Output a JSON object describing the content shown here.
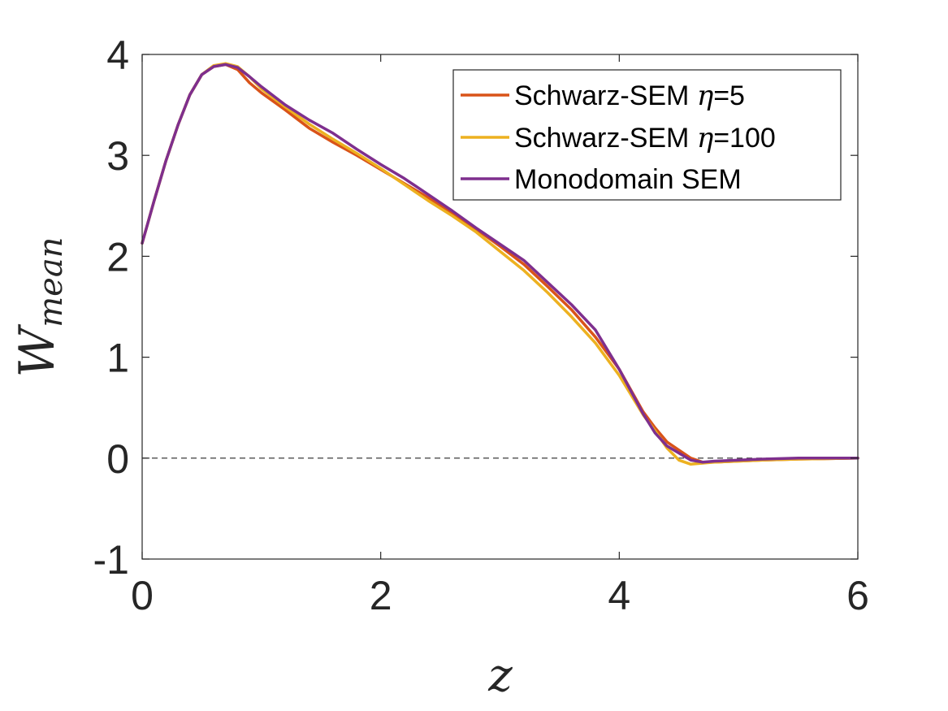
{
  "chart_data": {
    "type": "line",
    "xlabel": "z",
    "ylabel": "W",
    "ylabel_subscript": "mean",
    "xlim": [
      0,
      6
    ],
    "ylim": [
      -1,
      4
    ],
    "xticks": [
      0,
      2,
      4,
      6
    ],
    "xtick_labels": [
      "0",
      "2",
      "4",
      "6"
    ],
    "yticks": [
      -1,
      0,
      1,
      2,
      3,
      4
    ],
    "ytick_labels": [
      "-1",
      "0",
      "1",
      "2",
      "3",
      "4"
    ],
    "grid": false,
    "legend_position": "top-right",
    "reference_line": {
      "y": 0,
      "style": "dashed"
    },
    "series": [
      {
        "name": "Schwarz-SEM η=5",
        "legend_prefix": "Schwarz-SEM ",
        "legend_symbol": "η",
        "legend_suffix": "=5",
        "color": "#D95319",
        "x": [
          0,
          0.1,
          0.2,
          0.3,
          0.4,
          0.5,
          0.6,
          0.7,
          0.8,
          0.9,
          1.0,
          1.2,
          1.4,
          1.6,
          1.8,
          2.0,
          2.2,
          2.4,
          2.6,
          2.8,
          3.0,
          3.2,
          3.4,
          3.6,
          3.8,
          4.0,
          4.2,
          4.3,
          4.4,
          4.5,
          4.6,
          4.7,
          4.8,
          5.0,
          5.2,
          5.5,
          6.0
        ],
        "y": [
          2.13,
          2.55,
          2.95,
          3.3,
          3.6,
          3.8,
          3.88,
          3.9,
          3.85,
          3.72,
          3.62,
          3.45,
          3.27,
          3.13,
          3.0,
          2.86,
          2.72,
          2.58,
          2.43,
          2.27,
          2.1,
          1.92,
          1.7,
          1.47,
          1.2,
          0.88,
          0.46,
          0.3,
          0.16,
          0.08,
          0.0,
          -0.04,
          -0.04,
          -0.03,
          -0.02,
          -0.01,
          0.0
        ]
      },
      {
        "name": "Schwarz-SEM η=100",
        "legend_prefix": "Schwarz-SEM ",
        "legend_symbol": "η",
        "legend_suffix": "=100",
        "color": "#EDB120",
        "x": [
          0,
          0.1,
          0.2,
          0.3,
          0.4,
          0.5,
          0.6,
          0.7,
          0.8,
          0.9,
          1.0,
          1.2,
          1.4,
          1.6,
          1.8,
          2.0,
          2.2,
          2.4,
          2.6,
          2.8,
          3.0,
          3.2,
          3.4,
          3.6,
          3.8,
          4.0,
          4.2,
          4.3,
          4.4,
          4.5,
          4.6,
          4.7,
          4.8,
          5.0,
          5.2,
          5.5,
          6.0
        ],
        "y": [
          2.13,
          2.55,
          2.95,
          3.3,
          3.6,
          3.8,
          3.89,
          3.91,
          3.88,
          3.78,
          3.66,
          3.48,
          3.31,
          3.16,
          3.02,
          2.87,
          2.71,
          2.55,
          2.4,
          2.24,
          2.05,
          1.86,
          1.64,
          1.4,
          1.14,
          0.82,
          0.43,
          0.27,
          0.1,
          -0.02,
          -0.06,
          -0.05,
          -0.04,
          -0.03,
          -0.02,
          -0.01,
          0.0
        ]
      },
      {
        "name": "Monodomain SEM",
        "color": "#7E2F8E",
        "x": [
          0,
          0.1,
          0.2,
          0.3,
          0.4,
          0.5,
          0.6,
          0.7,
          0.8,
          0.9,
          1.0,
          1.2,
          1.4,
          1.6,
          1.8,
          2.0,
          2.2,
          2.4,
          2.6,
          2.8,
          3.0,
          3.2,
          3.4,
          3.6,
          3.8,
          4.0,
          4.2,
          4.3,
          4.4,
          4.5,
          4.6,
          4.7,
          4.8,
          5.0,
          5.2,
          5.5,
          6.0
        ],
        "y": [
          2.13,
          2.55,
          2.95,
          3.3,
          3.6,
          3.8,
          3.88,
          3.9,
          3.87,
          3.78,
          3.68,
          3.5,
          3.35,
          3.22,
          3.06,
          2.91,
          2.77,
          2.61,
          2.45,
          2.28,
          2.12,
          1.96,
          1.74,
          1.52,
          1.27,
          0.88,
          0.44,
          0.25,
          0.12,
          0.05,
          -0.02,
          -0.04,
          -0.03,
          -0.02,
          -0.01,
          0.0,
          0.0
        ]
      }
    ]
  }
}
